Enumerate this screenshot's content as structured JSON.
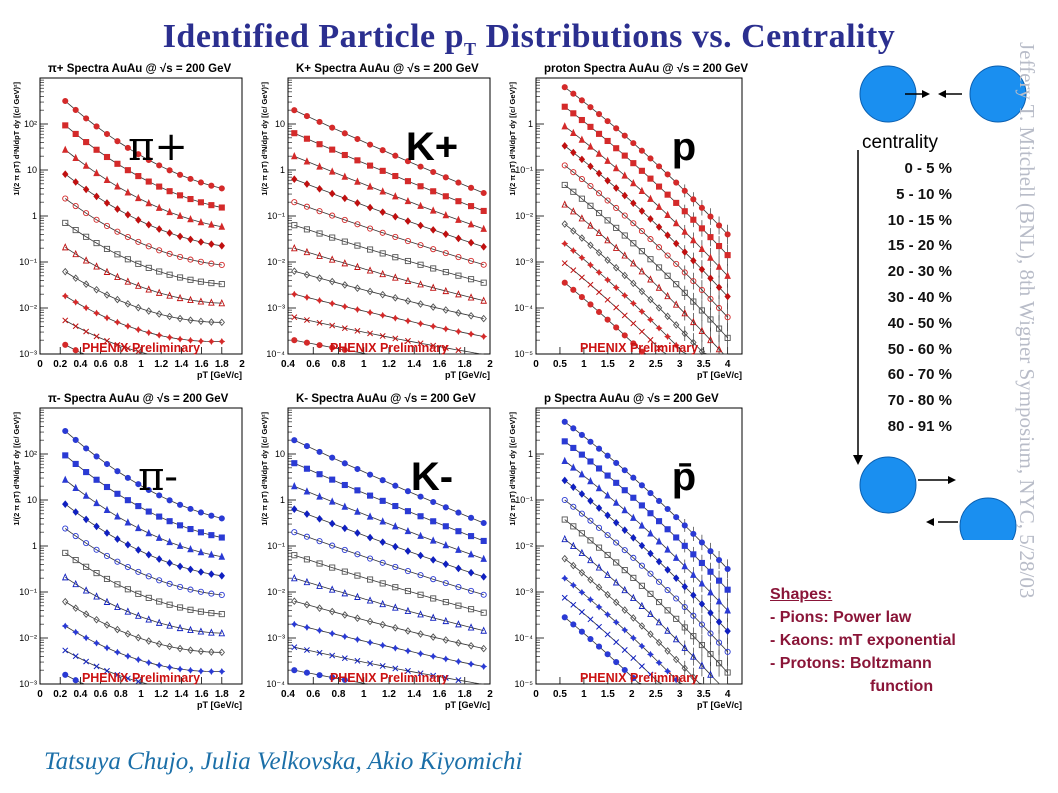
{
  "title": {
    "main": "Identified Particle p",
    "sub": "T",
    "rest": " Distributions vs. Centrality"
  },
  "credit": "Jeffery T. Mitchell (BNL), 8th Wigner Symposium, NYC, 5/28/03",
  "authors": "Tatsuya Chujo, Julia Velkovska, Akio Kiyomichi",
  "centrality": {
    "label": "centrality",
    "bins": [
      "0 -   5 %",
      "5 - 10 %",
      "10 - 15 %",
      "15 - 20 %",
      "20 - 30 %",
      "30 - 40 %",
      "40 - 50 %",
      "50 - 60 %",
      "60 - 70 %",
      "70 - 80 %",
      "80 - 91 %"
    ]
  },
  "shapes": {
    "header": "Shapes:",
    "items": [
      "- Pions: Power law",
      "- Kaons: mT exponential",
      "- Protons: Boltzmann",
      "function"
    ]
  },
  "colors": {
    "positive": "#d42a2a",
    "negative": "#2a3ad4",
    "title": "#2b2f8f",
    "phenix": "#cc1111",
    "shapes": "#8a1538",
    "nucleus": "#1a8ff0"
  },
  "chart_data": [
    {
      "type": "scatter",
      "id": "pi-plus",
      "header": "π+ Spectra  AuAu @ √s = 200 GeV",
      "particle": "π+",
      "watermark": "PHENIX Preliminary",
      "xlabel": "pT [GeV/c]",
      "ylabel": "1/(2 π pT) d²N/dpT dy [(c/ GeV)²]",
      "xlim": [
        0,
        2.0
      ],
      "xticks": [
        0,
        0.2,
        0.4,
        0.6,
        0.8,
        1,
        1.2,
        1.4,
        1.6,
        1.8,
        2
      ],
      "ylim_log": [
        -3,
        3
      ],
      "yticks": [
        "10⁻³",
        "10⁻²",
        "10⁻¹",
        "1",
        "10",
        "10²"
      ],
      "x_range_data": [
        0.25,
        1.8
      ],
      "n_series": 11,
      "color": "positive",
      "shape": "power law",
      "series_top": [
        2.5,
        0.6
      ],
      "series_step": -0.32,
      "curvature": 0.9
    },
    {
      "type": "scatter",
      "id": "k-plus",
      "header": "K+ Spectra  AuAu @ √s = 200 GeV",
      "particle": "K+",
      "watermark": "PHENIX Preliminary",
      "xlabel": "pT [GeV/c]",
      "ylabel": "1/(2 π pT) d²N/dpT dy [(c/ GeV)²]",
      "xlim": [
        0.4,
        2.0
      ],
      "xticks": [
        0.4,
        0.6,
        0.8,
        1,
        1.2,
        1.4,
        1.6,
        1.8,
        2
      ],
      "ylim_log": [
        -4,
        2
      ],
      "yticks": [
        "10⁻⁴",
        "10⁻³",
        "10⁻²",
        "10⁻¹",
        "1",
        "10"
      ],
      "x_range_data": [
        0.45,
        1.95
      ],
      "n_series": 11,
      "color": "positive",
      "shape": "exponential",
      "series_top": [
        1.3,
        -0.5
      ],
      "series_step": -0.3,
      "curvature": 0.1
    },
    {
      "type": "scatter",
      "id": "proton",
      "header": "proton Spectra  AuAu @ √s = 200 GeV",
      "particle": "p",
      "watermark": "PHENIX Preliminary",
      "xlabel": "pT [GeV/c]",
      "ylabel": "1/(2 π pT) d²N/dpT dy [(c/ GeV)²]",
      "xlim": [
        0,
        4.3
      ],
      "xticks": [
        0,
        0.5,
        1,
        1.5,
        2,
        2.5,
        3,
        3.5,
        4
      ],
      "ylim_log": [
        -5,
        1
      ],
      "yticks": [
        "10⁻⁵",
        "10⁻⁴",
        "10⁻³",
        "10⁻²",
        "10⁻¹",
        "1"
      ],
      "x_range_data": [
        0.6,
        4.0
      ],
      "n_series": 11,
      "color": "positive",
      "shape": "boltzmann",
      "series_top": [
        0.8,
        -2.4
      ],
      "series_step": -0.25,
      "curvature": 0.45
    },
    {
      "type": "scatter",
      "id": "pi-minus",
      "header": "π- Spectra  AuAu @ √s = 200 GeV",
      "particle": "π-",
      "watermark": "PHENIX Preliminary",
      "xlabel": "pT [GeV/c]",
      "ylabel": "1/(2 π pT) d²N/dpT dy [(c/ GeV)²]",
      "xlim": [
        0,
        2.0
      ],
      "xticks": [
        0,
        0.2,
        0.4,
        0.6,
        0.8,
        1,
        1.2,
        1.4,
        1.6,
        1.8,
        2
      ],
      "ylim_log": [
        -3,
        3
      ],
      "yticks": [
        "10⁻³",
        "10⁻²",
        "10⁻¹",
        "1",
        "10",
        "10²"
      ],
      "x_range_data": [
        0.25,
        1.8
      ],
      "n_series": 11,
      "color": "negative",
      "shape": "power law",
      "series_top": [
        2.5,
        0.6
      ],
      "series_step": -0.32,
      "curvature": 0.9
    },
    {
      "type": "scatter",
      "id": "k-minus",
      "header": "K- Spectra  AuAu @ √s = 200 GeV",
      "particle": "K-",
      "watermark": "PHENIX Preliminary",
      "xlabel": "pT [GeV/c]",
      "ylabel": "1/(2 π pT) d²N/dpT dy [(c/ GeV)²]",
      "xlim": [
        0.4,
        2.0
      ],
      "xticks": [
        0.4,
        0.6,
        0.8,
        1,
        1.2,
        1.4,
        1.6,
        1.8,
        2
      ],
      "ylim_log": [
        -4,
        2
      ],
      "yticks": [
        "10⁻⁴",
        "10⁻³",
        "10⁻²",
        "10⁻¹",
        "1",
        "10"
      ],
      "x_range_data": [
        0.45,
        1.95
      ],
      "n_series": 11,
      "color": "negative",
      "shape": "exponential",
      "series_top": [
        1.3,
        -0.5
      ],
      "series_step": -0.3,
      "curvature": 0.1
    },
    {
      "type": "scatter",
      "id": "anti-proton",
      "header": "p Spectra  AuAu @ √s = 200 GeV",
      "particle": "p̄",
      "watermark": "PHENIX Preliminary",
      "xlabel": "pT [GeV/c]",
      "ylabel": "1/(2 π pT) d²N/dpT dy [(c/ GeV)²]",
      "xlim": [
        0,
        4.3
      ],
      "xticks": [
        0,
        0.5,
        1,
        1.5,
        2,
        2.5,
        3,
        3.5,
        4
      ],
      "ylim_log": [
        -5,
        1
      ],
      "yticks": [
        "10⁻⁵",
        "10⁻⁴",
        "10⁻³",
        "10⁻²",
        "10⁻¹",
        "1"
      ],
      "x_range_data": [
        0.6,
        4.0
      ],
      "n_series": 11,
      "color": "negative",
      "shape": "boltzmann",
      "series_top": [
        0.7,
        -2.5
      ],
      "series_step": -0.25,
      "curvature": 0.45
    }
  ]
}
